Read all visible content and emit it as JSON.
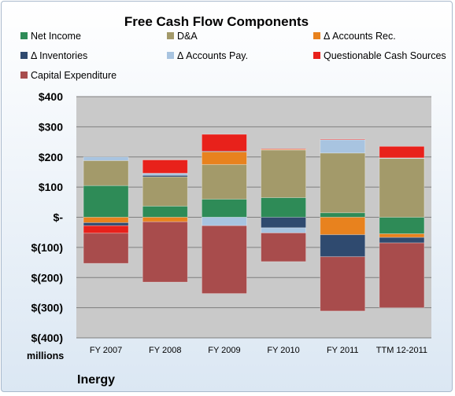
{
  "chart_data": {
    "type": "bar",
    "stacked": true,
    "title": "Free Cash Flow Components",
    "unit_label": "millions",
    "company": "Inergy",
    "categories": [
      "FY 2007",
      "FY 2008",
      "FY 2009",
      "FY 2010",
      "FY 2011",
      "TTM 12-2011"
    ],
    "ylim": [
      -400,
      400
    ],
    "yticks": [
      400,
      300,
      200,
      100,
      0,
      -100,
      -200,
      -300,
      -400
    ],
    "ytick_labels": [
      "$400",
      "$300",
      "$200",
      "$100",
      "$-",
      "$(100)",
      "$(200)",
      "$(300)",
      "$(400)"
    ],
    "grid": true,
    "legend_position": "top",
    "series": [
      {
        "name": "Net Income",
        "color": "#2e8b57",
        "values": [
          105,
          37,
          60,
          65,
          15,
          -55
        ]
      },
      {
        "name": "D&A",
        "color": "#a39a6a",
        "values": [
          83,
          97,
          115,
          158,
          198,
          195
        ]
      },
      {
        "name": "Δ Accounts Rec.",
        "color": "#e8821e",
        "values": [
          -18,
          -15,
          42,
          2,
          -58,
          -12
        ]
      },
      {
        "name": "Δ Inventories",
        "color": "#2f4a6f",
        "values": [
          -10,
          5,
          2,
          -35,
          -73,
          -18
        ]
      },
      {
        "name": "Δ Accounts Pay.",
        "color": "#a8c4e0",
        "values": [
          12,
          7,
          -28,
          -17,
          44,
          2
        ]
      },
      {
        "name": "Questionable Cash Sources",
        "color": "#e8211b",
        "values": [
          -25,
          44,
          56,
          2,
          2,
          38
        ]
      },
      {
        "name": "Capital Expenditure",
        "color": "#a84c4c",
        "values": [
          -100,
          -200,
          -225,
          -95,
          -180,
          -215
        ]
      }
    ]
  }
}
